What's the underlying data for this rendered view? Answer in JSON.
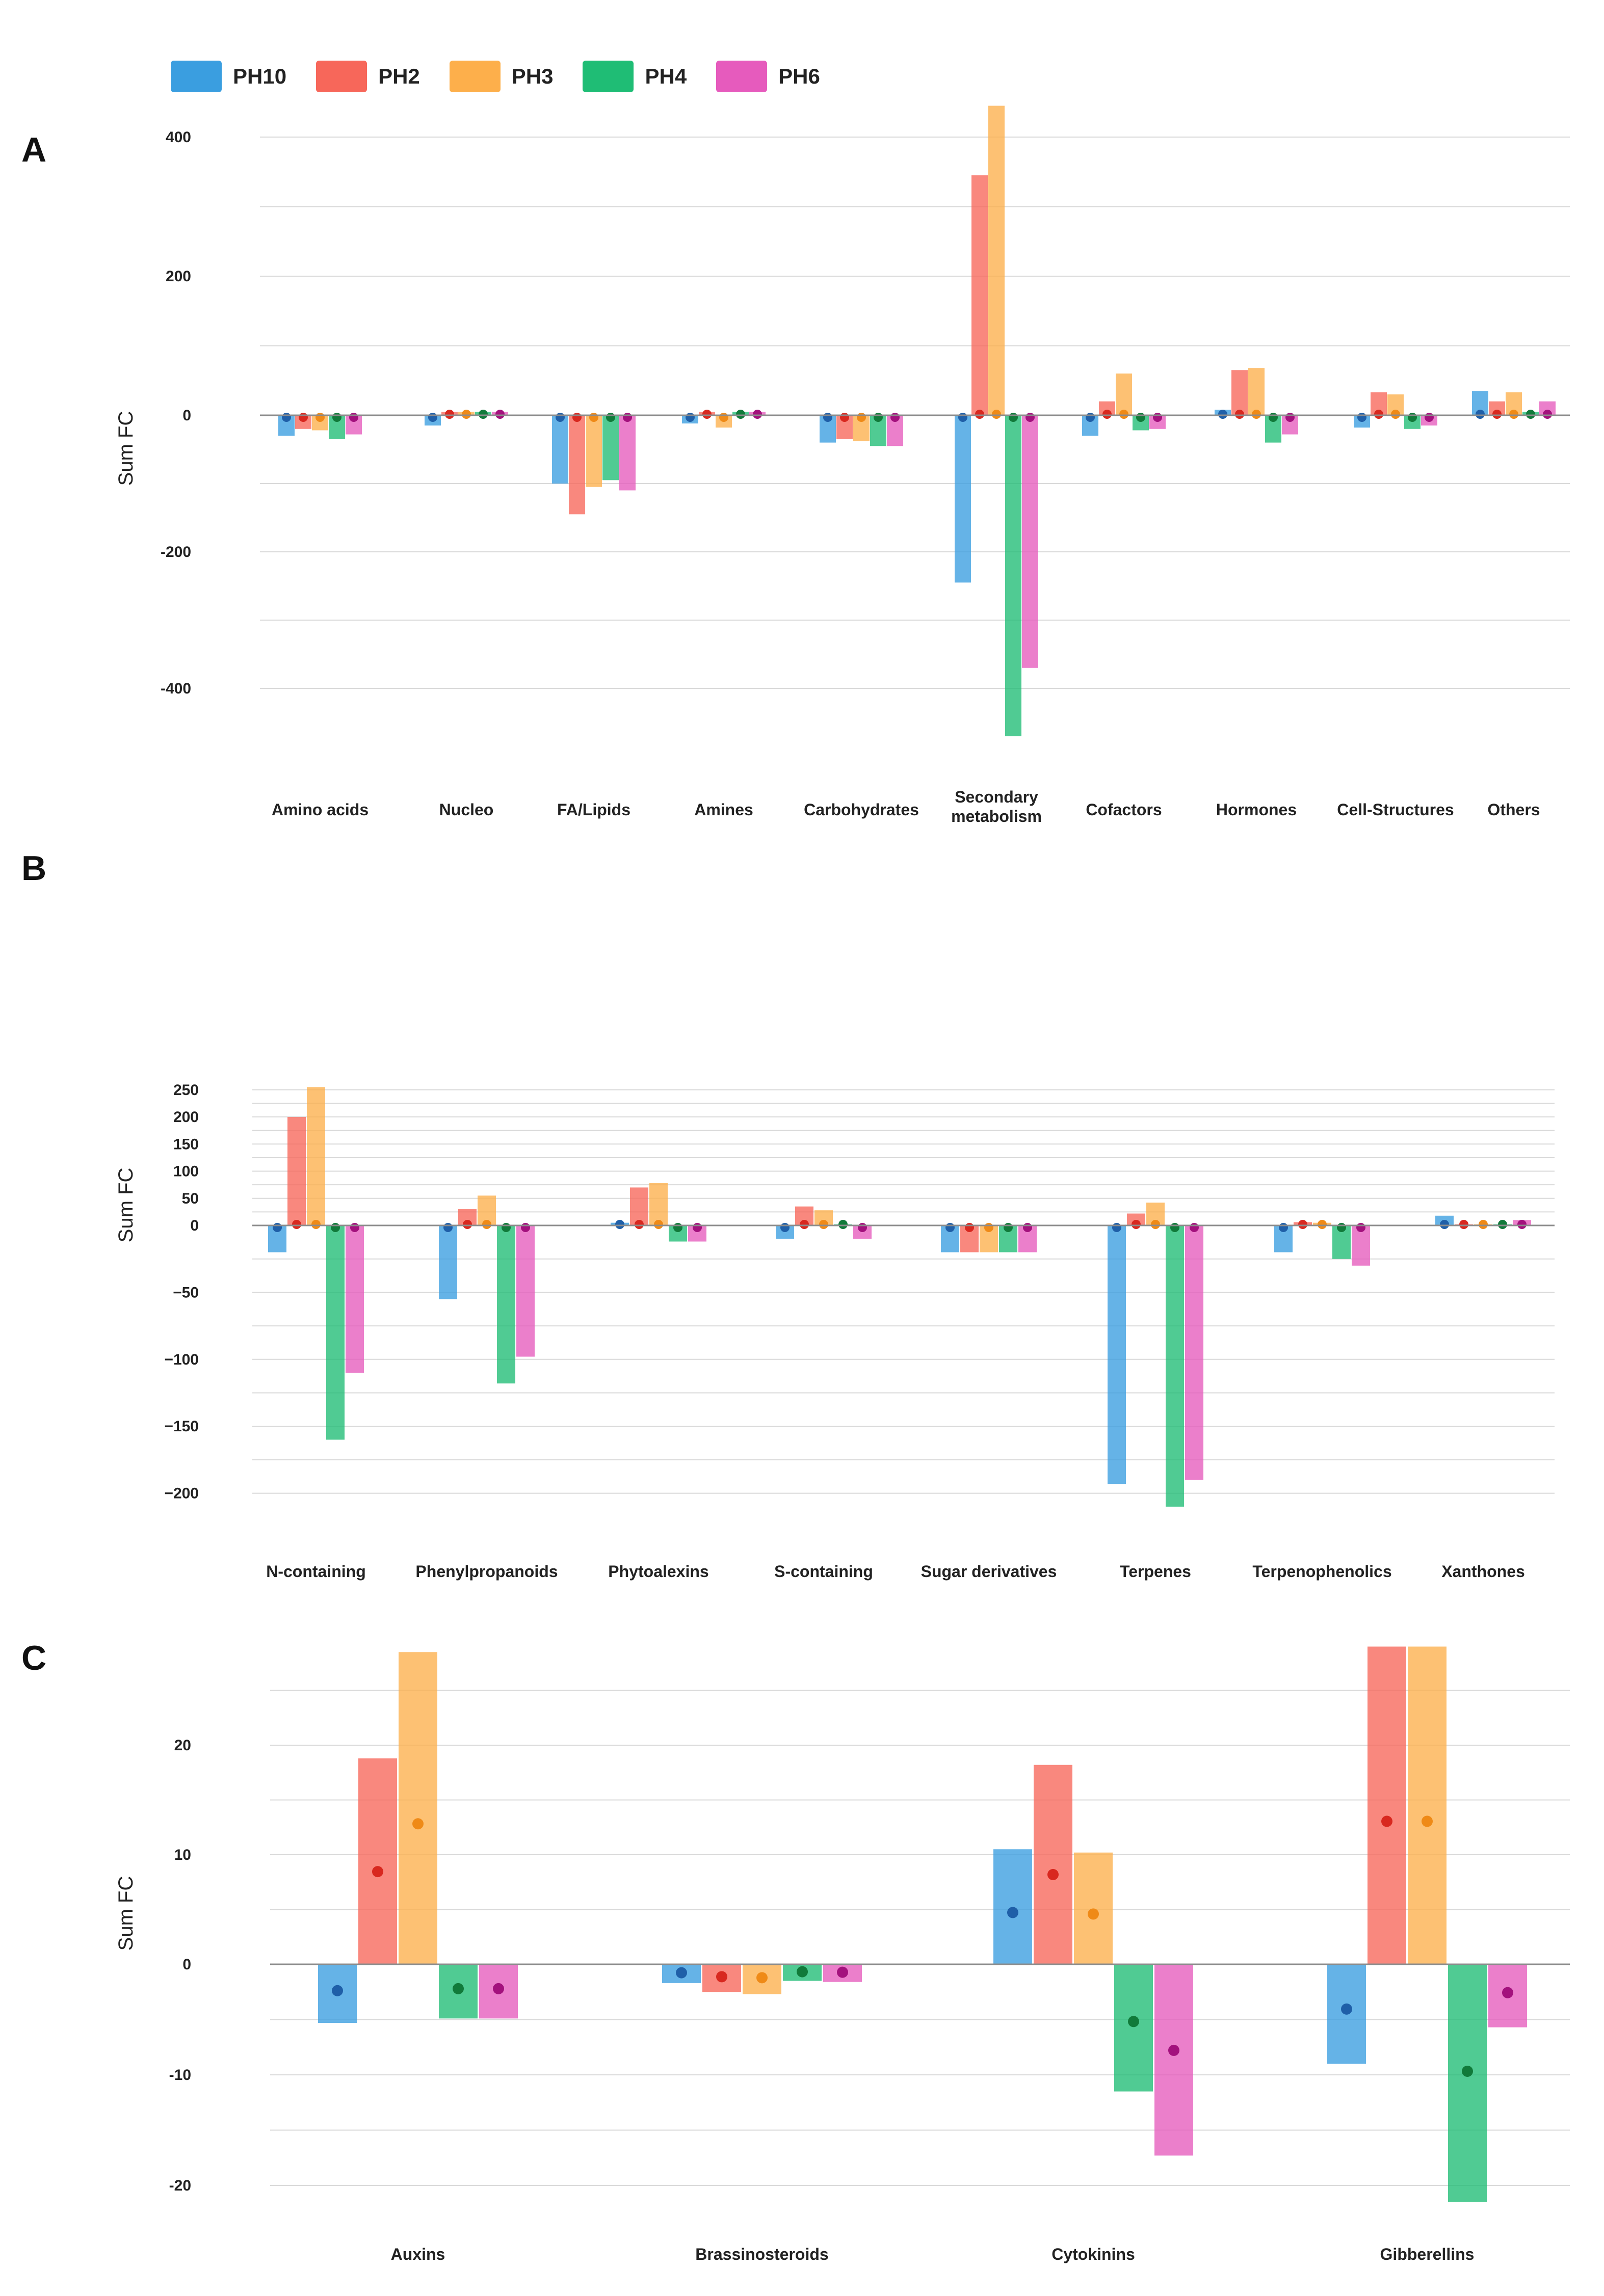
{
  "colors": {
    "PH10": "#3a9ee0",
    "PH2": "#f7675a",
    "PH3": "#fdaf4b",
    "PH4": "#1fbd75",
    "PH6": "#e65bbd",
    "gridline": "#d9d9d9",
    "zeroline": "#8c8c8c"
  },
  "dot_colors": {
    "PH10": "#1f5fa8",
    "PH2": "#d8281f",
    "PH3": "#ef8a17",
    "PH4": "#117a3a",
    "PH6": "#a3117d"
  },
  "legend": [
    "PH10",
    "PH2",
    "PH3",
    "PH4",
    "PH6"
  ],
  "panels": [
    {
      "letter": "A"
    },
    {
      "letter": "B"
    },
    {
      "letter": "C"
    }
  ],
  "chart_data": [
    {
      "type": "bar",
      "panel": "A",
      "ylabel": "Sum FC",
      "ylim": [
        -470,
        450
      ],
      "yticks": [
        400,
        200,
        0,
        -200,
        -400
      ],
      "grid_step": 100,
      "categories": [
        "Amino acids",
        "Nucleo",
        "FA/Lipids",
        "Amines",
        "Carbohydrates",
        "Secondary metabolism",
        "Cofactors",
        "Hormones",
        "Cell-Structures",
        "Others"
      ],
      "series": [
        {
          "name": "PH10",
          "values": [
            -30,
            -15,
            -100,
            -12,
            -40,
            -245,
            -30,
            8,
            -18,
            35
          ]
        },
        {
          "name": "PH2",
          "values": [
            -20,
            5,
            -145,
            5,
            -35,
            345,
            20,
            65,
            33,
            20
          ]
        },
        {
          "name": "PH3",
          "values": [
            -22,
            5,
            -105,
            -18,
            -38,
            445,
            60,
            68,
            30,
            33
          ]
        },
        {
          "name": "PH4",
          "values": [
            -35,
            5,
            -95,
            5,
            -45,
            -470,
            -22,
            -40,
            -20,
            5
          ]
        },
        {
          "name": "PH6",
          "values": [
            -28,
            5,
            -110,
            5,
            -45,
            -370,
            -20,
            -28,
            -15,
            20
          ]
        }
      ]
    },
    {
      "type": "bar",
      "panel": "B",
      "ylabel": "Sum FC",
      "ylim": [
        -210,
        255
      ],
      "yticks": [
        250,
        200,
        150,
        100,
        50,
        0,
        -50,
        -100,
        -150,
        -200
      ],
      "grid_step": 25,
      "categories": [
        "N-containing",
        "Phenylpropanoids",
        "Phytoalexins",
        "S-containing",
        "Sugar derivatives",
        "Terpenes",
        "Terpenophenolics",
        "Xanthones"
      ],
      "series": [
        {
          "name": "PH10",
          "values": [
            -20,
            -55,
            5,
            -10,
            -20,
            -193,
            -20,
            18
          ]
        },
        {
          "name": "PH2",
          "values": [
            200,
            30,
            70,
            35,
            -20,
            22,
            6,
            2
          ]
        },
        {
          "name": "PH3",
          "values": [
            255,
            55,
            78,
            28,
            -20,
            42,
            5,
            2
          ]
        },
        {
          "name": "PH4",
          "values": [
            -160,
            -118,
            -12,
            2,
            -20,
            -210,
            -25,
            2
          ]
        },
        {
          "name": "PH6",
          "values": [
            -110,
            -98,
            -12,
            -10,
            -20,
            -190,
            -30,
            10
          ]
        }
      ]
    },
    {
      "type": "bar",
      "panel": "C",
      "ylabel": "Sum FC",
      "ylim": [
        -21,
        28.5
      ],
      "yticks": [
        20,
        10,
        0,
        -10,
        -20
      ],
      "grid_step": 5,
      "categories": [
        "Auxins",
        "Brassinosteroids",
        "Cytokinins",
        "Gibberellins"
      ],
      "series": [
        {
          "name": "PH10",
          "values": [
            -5.3,
            -1.7,
            10.5,
            -9.0
          ]
        },
        {
          "name": "PH2",
          "values": [
            18.8,
            -2.5,
            18.2,
            29.0
          ]
        },
        {
          "name": "PH3",
          "values": [
            28.5,
            -2.7,
            10.2,
            29.0
          ]
        },
        {
          "name": "PH4",
          "values": [
            -4.9,
            -1.5,
            -11.5,
            -21.5
          ]
        },
        {
          "name": "PH6",
          "values": [
            -4.9,
            -1.6,
            -17.3,
            -5.7
          ]
        }
      ]
    }
  ]
}
